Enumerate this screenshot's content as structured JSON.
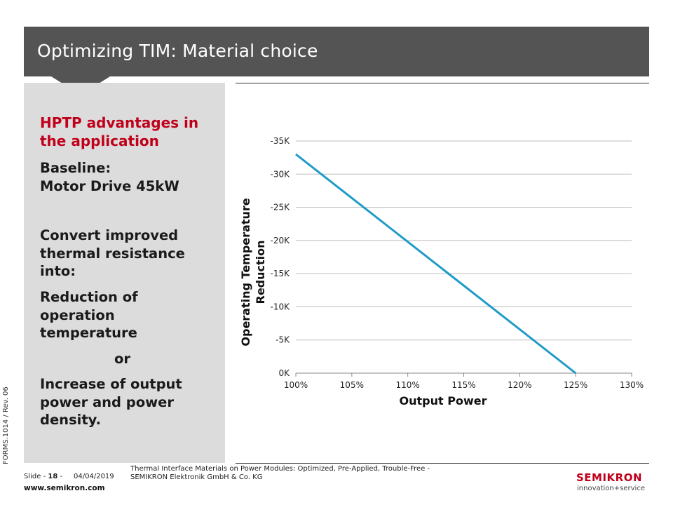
{
  "header": {
    "title": "Optimizing TIM: Material choice"
  },
  "left_panel": {
    "heading": [
      "HPTP advantages in",
      "the application"
    ],
    "baseline": [
      "Baseline:",
      "Motor Drive 45kW"
    ],
    "convert": [
      "Convert improved",
      "thermal resistance",
      "into:"
    ],
    "reduction": [
      "Reduction of",
      "operation",
      "temperature"
    ],
    "or": "or",
    "increase": [
      "Increase of output",
      "power and power",
      "density."
    ]
  },
  "side_reference": "FORMS.1014 / Rev. 06",
  "footer": {
    "slide_label": "Slide -",
    "slide_number": "18",
    "slide_suffix": "-",
    "date": "04/04/2019",
    "description_line1": "Thermal Interface Materials on Power Modules: Optimized, Pre-Applied, Trouble-Free -",
    "description_line2": "SEMIKRON Elektronik GmbH & Co. KG",
    "url": "www.semikron.com"
  },
  "logo": {
    "name": "SEMIKRON",
    "tagline": "innovation+service"
  },
  "colors": {
    "title_bar": "#545454",
    "panel": "#dcdcdc",
    "accent_red": "#c0001a",
    "line": "#1f9bc9"
  },
  "chart_data": {
    "type": "line",
    "xlabel": "Output Power",
    "ylabel_lines": [
      "Operating Temperature",
      "Reduction"
    ],
    "x_ticks": [
      "100%",
      "105%",
      "110%",
      "115%",
      "120%",
      "125%",
      "130%"
    ],
    "y_ticks": [
      "0K",
      "-5K",
      "-10K",
      "-15K",
      "-20K",
      "-25K",
      "-30K",
      "-35K"
    ],
    "xlim": [
      100,
      130
    ],
    "ylim": [
      0,
      -35
    ],
    "grid": true,
    "series": [
      {
        "x": [
          100,
          125
        ],
        "y": [
          -33,
          0
        ]
      }
    ]
  }
}
